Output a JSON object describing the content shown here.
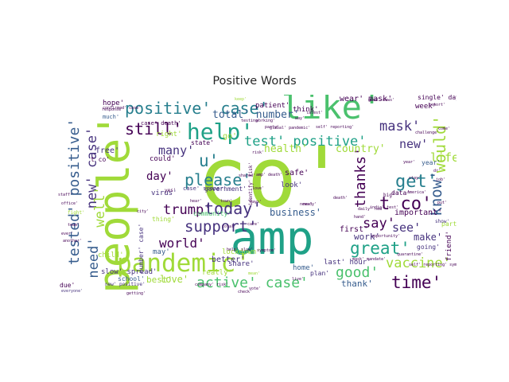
{
  "title": "Positive Words",
  "palette": [
    "#440154",
    "#46327e",
    "#365c8d",
    "#277f8e",
    "#1fa187",
    "#4ac16d",
    "#a0da39",
    "#fde725"
  ],
  "words": [
    {
      "text": "co'",
      "color": "#a0da39"
    },
    {
      "text": "amp",
      "color": "#1fa187"
    },
    {
      "text": "people'",
      "color": "#a0da39"
    },
    {
      "text": "like'",
      "color": "#4ac16d"
    },
    {
      "text": "pandemic'",
      "color": "#a0da39"
    },
    {
      "text": "help'",
      "color": "#1fa187"
    },
    {
      "text": "positive' case'",
      "color": "#277f8e"
    },
    {
      "text": "tested' positive'",
      "color": "#365c8d"
    },
    {
      "text": "still'",
      "color": "#440154"
    },
    {
      "text": "test' positive'",
      "color": "#1fa187"
    },
    {
      "text": "mask'",
      "color": "#46327e"
    },
    {
      "text": "new' case'",
      "color": "#46327e"
    },
    {
      "text": "would'",
      "color": "#a0da39"
    },
    {
      "text": "time'",
      "color": "#440154"
    },
    {
      "text": "trump'",
      "color": "#440154"
    },
    {
      "text": "today'",
      "color": "#46327e"
    },
    {
      "text": "please'",
      "color": "#277f8e"
    },
    {
      "text": "thanks'",
      "color": "#440154"
    },
    {
      "text": "get'",
      "color": "#277f8e"
    },
    {
      "text": "know'",
      "color": "#365c8d"
    },
    {
      "text": "t co'",
      "color": "#440154"
    },
    {
      "text": "need'",
      "color": "#365c8d"
    },
    {
      "text": "great'",
      "color": "#1fa187"
    },
    {
      "text": "vaccine'",
      "color": "#a0da39"
    },
    {
      "text": "active' case'",
      "color": "#4ac16d"
    },
    {
      "text": "support'",
      "color": "#46327e"
    },
    {
      "text": "world'",
      "color": "#440154"
    },
    {
      "text": "good'",
      "color": "#4ac16d"
    },
    {
      "text": "say'",
      "color": "#440154"
    },
    {
      "text": "see'",
      "color": "#46327e"
    },
    {
      "text": "new'",
      "color": "#46327e"
    },
    {
      "text": "life'",
      "color": "#a0da39"
    },
    {
      "text": "total' number'",
      "color": "#365c8d"
    },
    {
      "text": "business'",
      "color": "#365c8d"
    },
    {
      "text": "day'",
      "color": "#440154"
    },
    {
      "text": "many'",
      "color": "#46327e"
    },
    {
      "text": "health'",
      "color": "#a0da39"
    },
    {
      "text": "country'",
      "color": "#a0da39"
    },
    {
      "text": "well'",
      "color": "#a0da39"
    },
    {
      "text": "u'",
      "color": "#277f8e"
    },
    {
      "text": "love'",
      "color": "#a0da39"
    },
    {
      "text": "best'",
      "color": "#a0da39"
    },
    {
      "text": "thank'",
      "color": "#365c8d"
    },
    {
      "text": "work'",
      "color": "#46327e"
    },
    {
      "text": "make'",
      "color": "#46327e"
    },
    {
      "text": "important'",
      "color": "#440154"
    },
    {
      "text": "free'",
      "color": "#46327e"
    },
    {
      "text": "first'",
      "color": "#440154"
    },
    {
      "text": "better'",
      "color": "#46327e"
    },
    {
      "text": "look'",
      "color": "#46327e"
    },
    {
      "text": "safe'",
      "color": "#440154"
    },
    {
      "text": "virus'",
      "color": "#46327e"
    },
    {
      "text": "government'",
      "color": "#46327e"
    },
    {
      "text": "community'",
      "color": "#4ac16d"
    },
    {
      "text": "lockdown'",
      "color": "#a0da39"
    },
    {
      "text": "year'",
      "color": "#365c8d"
    },
    {
      "text": "week'",
      "color": "#440154"
    },
    {
      "text": "patient'",
      "color": "#440154"
    },
    {
      "text": "think'",
      "color": "#440154"
    },
    {
      "text": "wear' mask'",
      "color": "#440154"
    },
    {
      "text": "single' day'",
      "color": "#440154"
    },
    {
      "text": "hope'",
      "color": "#440154"
    },
    {
      "text": "right'",
      "color": "#a0da39"
    },
    {
      "text": "child'",
      "color": "#a0da39"
    },
    {
      "text": "slow' spread'",
      "color": "#46327e"
    },
    {
      "text": "may'",
      "color": "#365c8d"
    },
    {
      "text": "home'",
      "color": "#365c8d"
    },
    {
      "text": "last' hour'",
      "color": "#46327e"
    },
    {
      "text": "going'",
      "color": "#46327e"
    },
    {
      "text": "friend'",
      "color": "#440154"
    },
    {
      "text": "share'",
      "color": "#46327e"
    },
    {
      "text": "really'",
      "color": "#a0da39"
    },
    {
      "text": "plan'",
      "color": "#46327e"
    },
    {
      "text": "go'",
      "color": "#a0da39"
    },
    {
      "text": "could'",
      "color": "#440154"
    },
    {
      "text": "state'",
      "color": "#440154"
    },
    {
      "text": "thing'",
      "color": "#a0da39"
    },
    {
      "text": "number' case'",
      "color": "#46327e"
    },
    {
      "text": "much'",
      "color": "#365c8d"
    },
    {
      "text": "school'",
      "color": "#365c8d"
    },
    {
      "text": "due'",
      "color": "#440154"
    },
    {
      "text": "part'",
      "color": "#a0da39"
    },
    {
      "text": "data'",
      "color": "#440154"
    },
    {
      "text": "big'",
      "color": "#440154"
    },
    {
      "text": "fight'",
      "color": "#a0da39"
    },
    {
      "text": "case' sooner'",
      "color": "#46327e"
    },
    {
      "text": "case' death'",
      "color": "#440154"
    },
    {
      "text": "t co'",
      "color": "#440154"
    },
    {
      "text": "show'",
      "color": "#46327e"
    },
    {
      "text": "new' positive'",
      "color": "#46327e"
    },
    {
      "text": "getting'",
      "color": "#440154"
    },
    {
      "text": "keep'",
      "color": "#a0da39"
    },
    {
      "text": "yes'",
      "color": "#440154"
    },
    {
      "text": "way'",
      "color": "#440154"
    },
    {
      "text": "everyone'",
      "color": "#46327e"
    },
    {
      "text": "response'",
      "color": "#440154"
    },
    {
      "text": "stay'",
      "color": "#440154"
    },
    {
      "text": "mean'",
      "color": "#a0da39"
    },
    {
      "text": "report'",
      "color": "#440154"
    },
    {
      "text": "dr'",
      "color": "#440154"
    },
    {
      "text": "come'",
      "color": "#440154"
    },
    {
      "text": "ready'",
      "color": "#440154"
    },
    {
      "text": "latest'",
      "color": "#440154"
    },
    {
      "text": "news'",
      "color": "#440154"
    },
    {
      "text": "daily' new'",
      "color": "#440154"
    },
    {
      "text": "global' pandemic'",
      "color": "#440154"
    },
    {
      "text": "amp' death'",
      "color": "#440154"
    },
    {
      "text": "opportunity'",
      "color": "#440154"
    },
    {
      "text": "check'",
      "color": "#440154"
    },
    {
      "text": "hear'",
      "color": "#440154"
    },
    {
      "text": "live'",
      "color": "#440154"
    },
    {
      "text": "risk'",
      "color": "#440154"
    },
    {
      "text": "vote'",
      "color": "#440154"
    },
    {
      "text": "challenge'",
      "color": "#440154"
    },
    {
      "text": "self' reporting'",
      "color": "#440154"
    },
    {
      "text": "help' slow'",
      "color": "#440154"
    },
    {
      "text": "symptom'",
      "color": "#440154"
    },
    {
      "text": "party'",
      "color": "#440154"
    },
    {
      "text": "working'",
      "color": "#440154"
    },
    {
      "text": "testing'",
      "color": "#440154"
    },
    {
      "text": "town'",
      "color": "#440154"
    },
    {
      "text": "another'",
      "color": "#440154"
    },
    {
      "text": "city'",
      "color": "#440154"
    },
    {
      "text": "office'",
      "color": "#440154"
    },
    {
      "text": "ever'",
      "color": "#440154"
    },
    {
      "text": "team'",
      "color": "#440154"
    },
    {
      "text": "year'",
      "color": "#440154"
    },
    {
      "text": "death'",
      "color": "#440154"
    },
    {
      "text": "total'",
      "color": "#440154"
    },
    {
      "text": "says'",
      "color": "#440154"
    },
    {
      "text": "love'",
      "color": "#440154"
    },
    {
      "text": "hand'",
      "color": "#440154"
    },
    {
      "text": "job'",
      "color": "#440154"
    },
    {
      "text": "india' test'",
      "color": "#440154"
    },
    {
      "text": "identify' risk'",
      "color": "#440154"
    },
    {
      "text": "shared'",
      "color": "#440154"
    },
    {
      "text": "care'",
      "color": "#440154"
    },
    {
      "text": "good' news'",
      "color": "#440154"
    },
    {
      "text": "america'",
      "color": "#440154"
    },
    {
      "text": "mask' mandate'",
      "color": "#440154"
    },
    {
      "text": "put'",
      "color": "#440154"
    },
    {
      "text": "quarantine'",
      "color": "#440154"
    },
    {
      "text": "staff'",
      "color": "#440154"
    },
    {
      "text": "company' risk'",
      "color": "#440154"
    },
    {
      "text": "confirmed' case'",
      "color": "#440154"
    },
    {
      "text": "self' reporting' symptom'",
      "color": "#440154"
    }
  ]
}
